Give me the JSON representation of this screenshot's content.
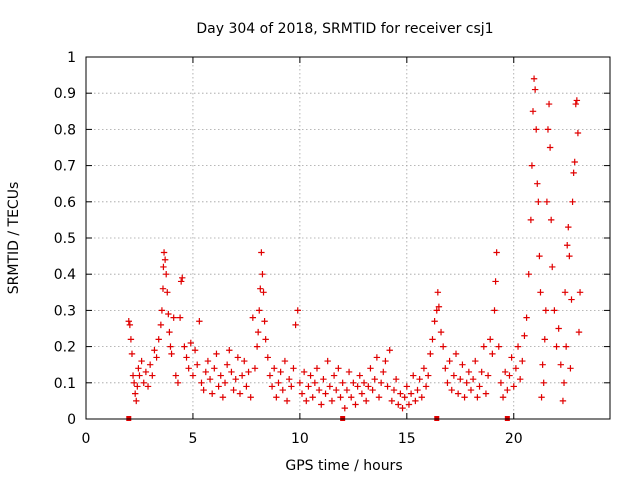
{
  "chart_data": {
    "type": "scatter",
    "title": "Day 304 of 2018, SRMTID for receiver csj1",
    "xlabel": "GPS time / hours",
    "ylabel": "SRMTID / TECUs",
    "xlim": [
      0,
      24.5
    ],
    "ylim": [
      0,
      1
    ],
    "xticks": [
      0,
      5,
      10,
      15,
      20
    ],
    "xtick_labels": [
      "0",
      "5",
      "10",
      "15",
      "20"
    ],
    "yticks": [
      0,
      0.1,
      0.2,
      0.3,
      0.4,
      0.5,
      0.6,
      0.7,
      0.8,
      0.9,
      1
    ],
    "ytick_labels": [
      "0",
      "0.1",
      "0.2",
      "0.3",
      "0.4",
      "0.5",
      "0.6",
      "0.7",
      "0.8",
      "0.9",
      "1"
    ],
    "grid": true,
    "marker": "+",
    "color": "#e00000",
    "series": [
      {
        "name": "SRMTID",
        "points": [
          [
            2.0,
            0.27
          ],
          [
            2.05,
            0.26
          ],
          [
            2.1,
            0.22
          ],
          [
            2.15,
            0.18
          ],
          [
            2.2,
            0.12
          ],
          [
            2.25,
            0.1
          ],
          [
            2.3,
            0.07
          ],
          [
            2.35,
            0.05
          ],
          [
            2.4,
            0.09
          ],
          [
            2.45,
            0.14
          ],
          [
            2.5,
            0.12
          ],
          [
            2.6,
            0.16
          ],
          [
            2.7,
            0.1
          ],
          [
            2.8,
            0.13
          ],
          [
            2.9,
            0.09
          ],
          [
            3.0,
            0.15
          ],
          [
            3.1,
            0.12
          ],
          [
            3.2,
            0.19
          ],
          [
            3.3,
            0.17
          ],
          [
            3.4,
            0.22
          ],
          [
            3.5,
            0.26
          ],
          [
            3.55,
            0.3
          ],
          [
            3.6,
            0.36
          ],
          [
            3.62,
            0.42
          ],
          [
            3.65,
            0.46
          ],
          [
            3.7,
            0.44
          ],
          [
            3.75,
            0.4
          ],
          [
            3.8,
            0.35
          ],
          [
            3.85,
            0.29
          ],
          [
            3.9,
            0.24
          ],
          [
            3.95,
            0.2
          ],
          [
            4.0,
            0.18
          ],
          [
            4.1,
            0.28
          ],
          [
            4.2,
            0.12
          ],
          [
            4.3,
            0.1
          ],
          [
            4.4,
            0.28
          ],
          [
            4.45,
            0.38
          ],
          [
            4.5,
            0.39
          ],
          [
            4.6,
            0.2
          ],
          [
            4.7,
            0.17
          ],
          [
            4.8,
            0.14
          ],
          [
            4.9,
            0.21
          ],
          [
            5.0,
            0.12
          ],
          [
            5.1,
            0.19
          ],
          [
            5.2,
            0.15
          ],
          [
            5.3,
            0.27
          ],
          [
            5.4,
            0.1
          ],
          [
            5.5,
            0.08
          ],
          [
            5.6,
            0.13
          ],
          [
            5.7,
            0.16
          ],
          [
            5.8,
            0.11
          ],
          [
            5.9,
            0.07
          ],
          [
            6.0,
            0.14
          ],
          [
            6.1,
            0.18
          ],
          [
            6.2,
            0.09
          ],
          [
            6.3,
            0.12
          ],
          [
            6.4,
            0.06
          ],
          [
            6.5,
            0.1
          ],
          [
            6.6,
            0.15
          ],
          [
            6.7,
            0.19
          ],
          [
            6.8,
            0.13
          ],
          [
            6.9,
            0.08
          ],
          [
            7.0,
            0.11
          ],
          [
            7.1,
            0.17
          ],
          [
            7.2,
            0.07
          ],
          [
            7.3,
            0.12
          ],
          [
            7.4,
            0.16
          ],
          [
            7.5,
            0.09
          ],
          [
            7.6,
            0.13
          ],
          [
            7.7,
            0.06
          ],
          [
            7.8,
            0.28
          ],
          [
            7.9,
            0.14
          ],
          [
            8.0,
            0.2
          ],
          [
            8.05,
            0.24
          ],
          [
            8.1,
            0.3
          ],
          [
            8.15,
            0.36
          ],
          [
            8.2,
            0.46
          ],
          [
            8.25,
            0.4
          ],
          [
            8.3,
            0.35
          ],
          [
            8.35,
            0.27
          ],
          [
            8.4,
            0.22
          ],
          [
            8.5,
            0.17
          ],
          [
            8.6,
            0.12
          ],
          [
            8.7,
            0.09
          ],
          [
            8.8,
            0.14
          ],
          [
            8.9,
            0.06
          ],
          [
            9.0,
            0.1
          ],
          [
            9.1,
            0.13
          ],
          [
            9.2,
            0.08
          ],
          [
            9.3,
            0.16
          ],
          [
            9.4,
            0.05
          ],
          [
            9.5,
            0.11
          ],
          [
            9.6,
            0.09
          ],
          [
            9.7,
            0.14
          ],
          [
            9.8,
            0.26
          ],
          [
            9.9,
            0.3
          ],
          [
            10.0,
            0.1
          ],
          [
            10.1,
            0.07
          ],
          [
            10.2,
            0.13
          ],
          [
            10.3,
            0.05
          ],
          [
            10.4,
            0.09
          ],
          [
            10.5,
            0.12
          ],
          [
            10.6,
            0.06
          ],
          [
            10.7,
            0.1
          ],
          [
            10.8,
            0.14
          ],
          [
            10.9,
            0.08
          ],
          [
            11.0,
            0.04
          ],
          [
            11.1,
            0.11
          ],
          [
            11.2,
            0.07
          ],
          [
            11.3,
            0.16
          ],
          [
            11.4,
            0.09
          ],
          [
            11.5,
            0.05
          ],
          [
            11.6,
            0.12
          ],
          [
            11.7,
            0.08
          ],
          [
            11.8,
            0.14
          ],
          [
            11.9,
            0.06
          ],
          [
            12.0,
            0.1
          ],
          [
            12.1,
            0.03
          ],
          [
            12.2,
            0.08
          ],
          [
            12.3,
            0.13
          ],
          [
            12.4,
            0.06
          ],
          [
            12.5,
            0.1
          ],
          [
            12.6,
            0.04
          ],
          [
            12.7,
            0.09
          ],
          [
            12.8,
            0.12
          ],
          [
            12.9,
            0.07
          ],
          [
            13.0,
            0.1
          ],
          [
            13.1,
            0.05
          ],
          [
            13.2,
            0.09
          ],
          [
            13.3,
            0.14
          ],
          [
            13.4,
            0.08
          ],
          [
            13.5,
            0.11
          ],
          [
            13.6,
            0.17
          ],
          [
            13.7,
            0.06
          ],
          [
            13.8,
            0.1
          ],
          [
            13.9,
            0.13
          ],
          [
            14.0,
            0.16
          ],
          [
            14.1,
            0.09
          ],
          [
            14.2,
            0.19
          ],
          [
            14.3,
            0.05
          ],
          [
            14.4,
            0.08
          ],
          [
            14.5,
            0.11
          ],
          [
            14.6,
            0.04
          ],
          [
            14.7,
            0.07
          ],
          [
            14.8,
            0.03
          ],
          [
            14.9,
            0.06
          ],
          [
            15.0,
            0.09
          ],
          [
            15.1,
            0.04
          ],
          [
            15.2,
            0.07
          ],
          [
            15.3,
            0.12
          ],
          [
            15.4,
            0.05
          ],
          [
            15.5,
            0.08
          ],
          [
            15.6,
            0.11
          ],
          [
            15.7,
            0.06
          ],
          [
            15.8,
            0.14
          ],
          [
            15.9,
            0.09
          ],
          [
            16.0,
            0.12
          ],
          [
            16.1,
            0.18
          ],
          [
            16.2,
            0.22
          ],
          [
            16.3,
            0.27
          ],
          [
            16.4,
            0.3
          ],
          [
            16.45,
            0.35
          ],
          [
            16.5,
            0.31
          ],
          [
            16.6,
            0.24
          ],
          [
            16.7,
            0.2
          ],
          [
            16.8,
            0.14
          ],
          [
            16.9,
            0.1
          ],
          [
            17.0,
            0.16
          ],
          [
            17.1,
            0.08
          ],
          [
            17.2,
            0.12
          ],
          [
            17.3,
            0.18
          ],
          [
            17.4,
            0.07
          ],
          [
            17.5,
            0.11
          ],
          [
            17.6,
            0.15
          ],
          [
            17.7,
            0.06
          ],
          [
            17.8,
            0.1
          ],
          [
            17.9,
            0.13
          ],
          [
            18.0,
            0.08
          ],
          [
            18.1,
            0.11
          ],
          [
            18.2,
            0.16
          ],
          [
            18.3,
            0.06
          ],
          [
            18.4,
            0.09
          ],
          [
            18.5,
            0.13
          ],
          [
            18.6,
            0.2
          ],
          [
            18.7,
            0.07
          ],
          [
            18.8,
            0.12
          ],
          [
            18.9,
            0.22
          ],
          [
            19.0,
            0.18
          ],
          [
            19.1,
            0.3
          ],
          [
            19.15,
            0.38
          ],
          [
            19.2,
            0.46
          ],
          [
            19.3,
            0.2
          ],
          [
            19.4,
            0.1
          ],
          [
            19.5,
            0.06
          ],
          [
            19.6,
            0.13
          ],
          [
            19.7,
            0.08
          ],
          [
            19.8,
            0.12
          ],
          [
            19.9,
            0.17
          ],
          [
            20.0,
            0.09
          ],
          [
            20.1,
            0.14
          ],
          [
            20.2,
            0.2
          ],
          [
            20.3,
            0.11
          ],
          [
            20.4,
            0.16
          ],
          [
            20.5,
            0.23
          ],
          [
            20.6,
            0.28
          ],
          [
            20.7,
            0.4
          ],
          [
            20.8,
            0.55
          ],
          [
            20.85,
            0.7
          ],
          [
            20.9,
            0.85
          ],
          [
            20.95,
            0.94
          ],
          [
            21.0,
            0.91
          ],
          [
            21.05,
            0.8
          ],
          [
            21.1,
            0.65
          ],
          [
            21.15,
            0.6
          ],
          [
            21.2,
            0.45
          ],
          [
            21.3,
            0.06
          ],
          [
            21.4,
            0.1
          ],
          [
            21.5,
            0.3
          ],
          [
            21.55,
            0.6
          ],
          [
            21.6,
            0.8
          ],
          [
            21.65,
            0.87
          ],
          [
            21.7,
            0.75
          ],
          [
            21.75,
            0.55
          ],
          [
            21.8,
            0.42
          ],
          [
            21.9,
            0.3
          ],
          [
            22.0,
            0.2
          ],
          [
            22.1,
            0.25
          ],
          [
            22.2,
            0.15
          ],
          [
            22.3,
            0.05
          ],
          [
            22.35,
            0.1
          ],
          [
            22.4,
            0.35
          ],
          [
            22.5,
            0.48
          ],
          [
            22.55,
            0.53
          ],
          [
            22.6,
            0.45
          ],
          [
            22.7,
            0.33
          ],
          [
            22.75,
            0.6
          ],
          [
            22.8,
            0.68
          ],
          [
            22.85,
            0.71
          ],
          [
            22.9,
            0.87
          ],
          [
            22.95,
            0.88
          ],
          [
            23.0,
            0.79
          ],
          [
            23.05,
            0.24
          ],
          [
            23.1,
            0.35
          ],
          [
            22.65,
            0.14
          ],
          [
            22.45,
            0.2
          ],
          [
            21.25,
            0.35
          ],
          [
            21.35,
            0.15
          ],
          [
            21.45,
            0.22
          ]
        ]
      }
    ],
    "axis_markers": [
      2.0,
      12.0,
      16.4,
      19.7
    ]
  }
}
